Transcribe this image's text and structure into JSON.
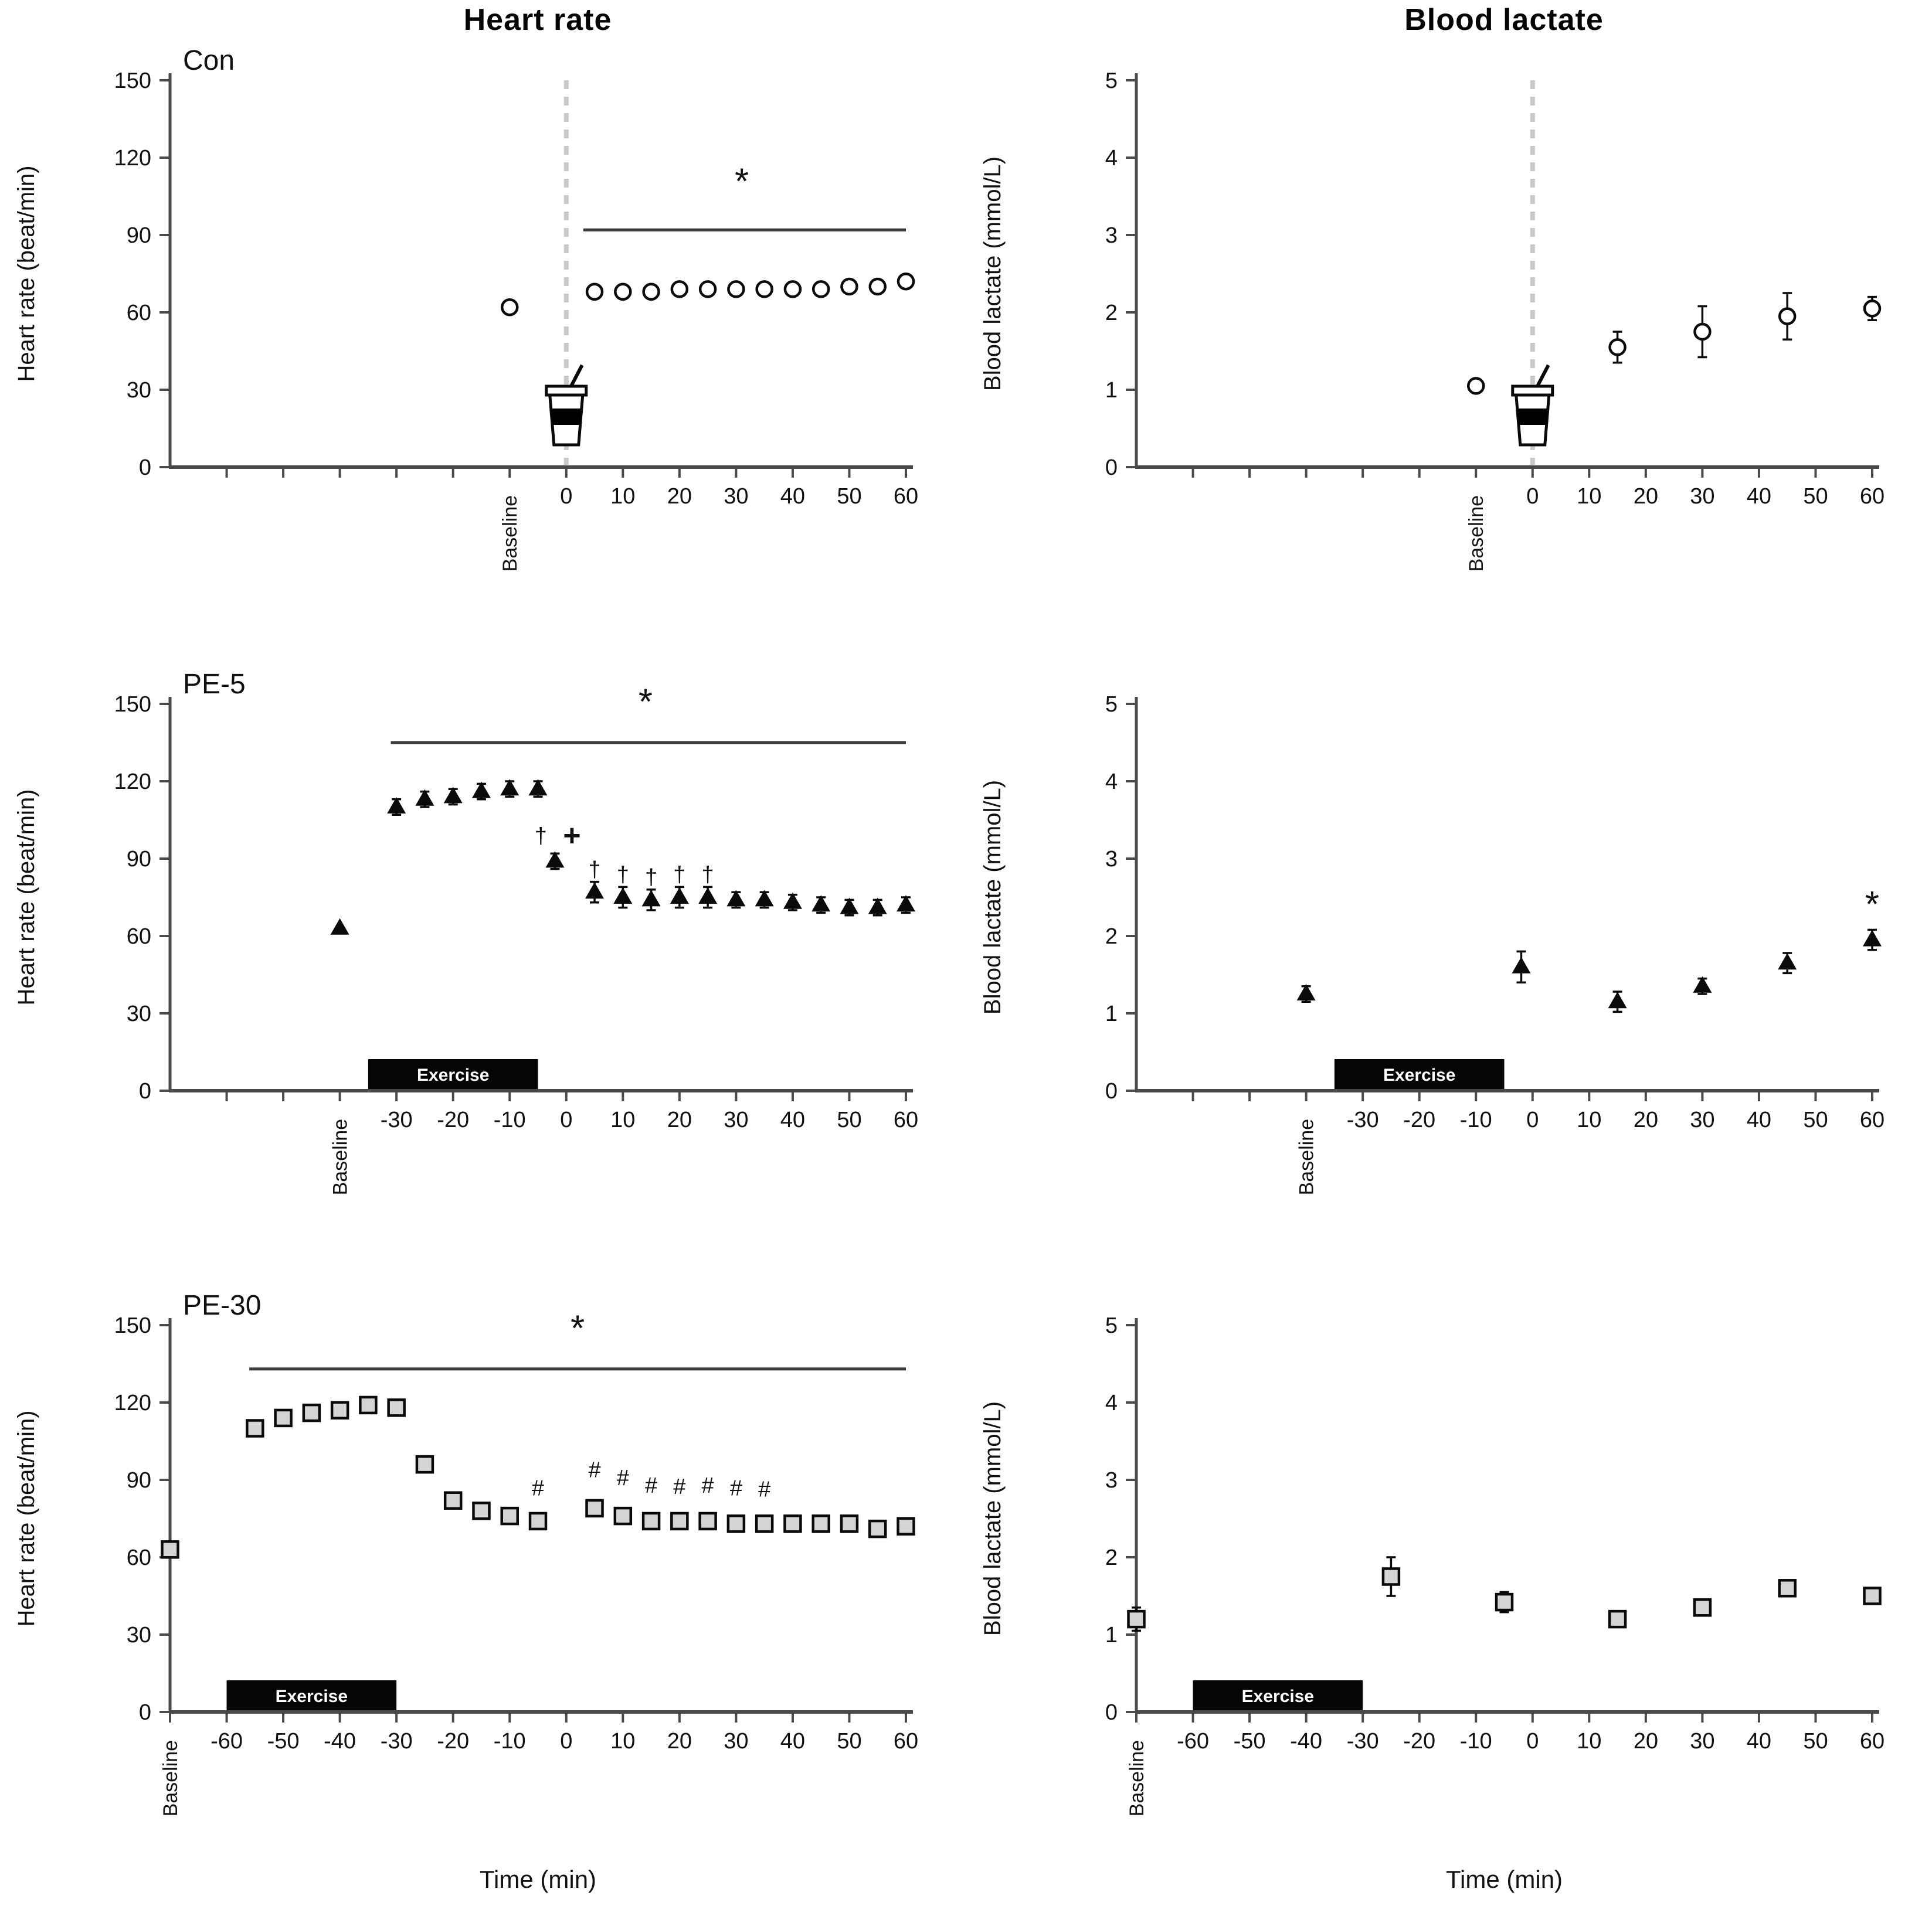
{
  "figure": {
    "column_titles": {
      "left": "Heart rate",
      "right": "Blood lactate"
    },
    "x_axis_label": "Time (min)",
    "exercise_label": "Exercise",
    "symbols": {
      "star": "*",
      "dagger": "†",
      "plus": "+",
      "hash": "#"
    },
    "colors": {
      "axis": "#4a4a4a",
      "black": "#0a0a0a",
      "gray_marker_fill": "#d4d4d4",
      "dashed_line": "#c9c9c9",
      "sig_line": "#3b3b3b",
      "exercise_bar": "#050505",
      "exercise_text": "#ffffff"
    }
  },
  "chart_data": [
    {
      "id": "con-hr",
      "type": "scatter",
      "row": "Con",
      "col": "left",
      "panel_label": "Con",
      "marker": "circle-open",
      "ylabel": "Heart rate (beat/min)",
      "ylim": [
        0,
        150
      ],
      "yticks": [
        0,
        30,
        60,
        90,
        120,
        150
      ],
      "x_ticks_labeled": [
        {
          "t": -10,
          "label": "Baseline",
          "rotated": true
        },
        {
          "t": 0,
          "label": "0"
        },
        {
          "t": 10,
          "label": "10"
        },
        {
          "t": 20,
          "label": "20"
        },
        {
          "t": 30,
          "label": "30"
        },
        {
          "t": 40,
          "label": "40"
        },
        {
          "t": 50,
          "label": "50"
        },
        {
          "t": 60,
          "label": "60"
        }
      ],
      "x_ticks_unlabeled": [
        -60,
        -50,
        -40,
        -30,
        -20
      ],
      "dashed_line_t": 0,
      "cup_icon_t": 0,
      "exercise_bar": null,
      "x_axis_label": false,
      "sig_line": {
        "v": 92,
        "t1": 3,
        "t2": 60,
        "star_t": 31,
        "star_v": 106
      },
      "points": [
        {
          "t": -10,
          "v": 62,
          "label": "baseline"
        },
        {
          "t": 5,
          "v": 68
        },
        {
          "t": 10,
          "v": 68
        },
        {
          "t": 15,
          "v": 68
        },
        {
          "t": 20,
          "v": 69
        },
        {
          "t": 25,
          "v": 69
        },
        {
          "t": 30,
          "v": 69
        },
        {
          "t": 35,
          "v": 69
        },
        {
          "t": 40,
          "v": 69
        },
        {
          "t": 45,
          "v": 69
        },
        {
          "t": 50,
          "v": 70
        },
        {
          "t": 55,
          "v": 70
        },
        {
          "t": 60,
          "v": 72
        }
      ],
      "annotations": []
    },
    {
      "id": "con-lactate",
      "type": "scatter",
      "row": "Con",
      "col": "right",
      "panel_label": null,
      "marker": "circle-open",
      "ylabel": "Blood lactate (mmol/L)",
      "ylim": [
        0,
        5
      ],
      "yticks": [
        0,
        1,
        2,
        3,
        4,
        5
      ],
      "x_ticks_labeled": [
        {
          "t": -10,
          "label": "Baseline",
          "rotated": true
        },
        {
          "t": 0,
          "label": "0"
        },
        {
          "t": 10,
          "label": "10"
        },
        {
          "t": 20,
          "label": "20"
        },
        {
          "t": 30,
          "label": "30"
        },
        {
          "t": 40,
          "label": "40"
        },
        {
          "t": 50,
          "label": "50"
        },
        {
          "t": 60,
          "label": "60"
        }
      ],
      "x_ticks_unlabeled": [
        -60,
        -50,
        -40,
        -30,
        -20
      ],
      "dashed_line_t": 0,
      "cup_icon_t": 0,
      "exercise_bar": null,
      "x_axis_label": false,
      "sig_line": null,
      "points": [
        {
          "t": -10,
          "v": 1.05,
          "label": "baseline"
        },
        {
          "t": 15,
          "v": 1.55,
          "err": 0.2
        },
        {
          "t": 30,
          "v": 1.75,
          "err": 0.33
        },
        {
          "t": 45,
          "v": 1.95,
          "err": 0.3
        },
        {
          "t": 60,
          "v": 2.05,
          "err": 0.15
        }
      ],
      "annotations": []
    },
    {
      "id": "pe5-hr",
      "type": "scatter",
      "row": "PE-5",
      "col": "left",
      "panel_label": "PE-5",
      "marker": "triangle-filled",
      "ylabel": "Heart rate (beat/min)",
      "ylim": [
        0,
        150
      ],
      "yticks": [
        0,
        30,
        60,
        90,
        120,
        150
      ],
      "x_ticks_labeled": [
        {
          "t": -40,
          "label": "Baseline",
          "rotated": true
        },
        {
          "t": -30,
          "label": "-30"
        },
        {
          "t": -20,
          "label": "-20"
        },
        {
          "t": -10,
          "label": "-10"
        },
        {
          "t": 0,
          "label": "0"
        },
        {
          "t": 10,
          "label": "10"
        },
        {
          "t": 20,
          "label": "20"
        },
        {
          "t": 30,
          "label": "30"
        },
        {
          "t": 40,
          "label": "40"
        },
        {
          "t": 50,
          "label": "50"
        },
        {
          "t": 60,
          "label": "60"
        }
      ],
      "x_ticks_unlabeled": [
        -60,
        -50
      ],
      "dashed_line_t": null,
      "cup_icon_t": null,
      "exercise_bar": {
        "t1": -35,
        "t2": -5
      },
      "x_axis_label": false,
      "sig_line": {
        "v": 135,
        "t1": -31,
        "t2": 60,
        "star_t": 14,
        "star_v": 146
      },
      "points": [
        {
          "t": -40,
          "v": 63,
          "label": "baseline"
        },
        {
          "t": -30,
          "v": 110,
          "err": 3
        },
        {
          "t": -25,
          "v": 113,
          "err": 3
        },
        {
          "t": -20,
          "v": 114,
          "err": 3
        },
        {
          "t": -15,
          "v": 116,
          "err": 3
        },
        {
          "t": -10,
          "v": 117,
          "err": 3
        },
        {
          "t": -5,
          "v": 117,
          "err": 3
        },
        {
          "t": -2,
          "v": 89,
          "err": 3
        },
        {
          "t": 5,
          "v": 77,
          "err": 4
        },
        {
          "t": 10,
          "v": 75,
          "err": 4
        },
        {
          "t": 15,
          "v": 74,
          "err": 4
        },
        {
          "t": 20,
          "v": 75,
          "err": 4
        },
        {
          "t": 25,
          "v": 75,
          "err": 4
        },
        {
          "t": 30,
          "v": 74,
          "err": 3
        },
        {
          "t": 35,
          "v": 74,
          "err": 3
        },
        {
          "t": 40,
          "v": 73,
          "err": 3
        },
        {
          "t": 45,
          "v": 72,
          "err": 3
        },
        {
          "t": 50,
          "v": 71,
          "err": 3
        },
        {
          "t": 55,
          "v": 71,
          "err": 3
        },
        {
          "t": 60,
          "v": 72,
          "err": 3
        }
      ],
      "annotations": [
        {
          "t": -4.5,
          "v": 96,
          "symbol": "dagger"
        },
        {
          "t": 1,
          "v": 95,
          "symbol": "plus"
        },
        {
          "t": 5,
          "v": 83,
          "symbol": "dagger"
        },
        {
          "t": 10,
          "v": 81,
          "symbol": "dagger"
        },
        {
          "t": 15,
          "v": 80,
          "symbol": "dagger"
        },
        {
          "t": 20,
          "v": 81,
          "symbol": "dagger"
        },
        {
          "t": 25,
          "v": 81,
          "symbol": "dagger"
        }
      ]
    },
    {
      "id": "pe5-lactate",
      "type": "scatter",
      "row": "PE-5",
      "col": "right",
      "panel_label": null,
      "marker": "triangle-filled",
      "ylabel": "Blood lactate (mmol/L)",
      "ylim": [
        0,
        5
      ],
      "yticks": [
        0,
        1,
        2,
        3,
        4,
        5
      ],
      "x_ticks_labeled": [
        {
          "t": -40,
          "label": "Baseline",
          "rotated": true
        },
        {
          "t": -30,
          "label": "-30"
        },
        {
          "t": -20,
          "label": "-20"
        },
        {
          "t": -10,
          "label": "-10"
        },
        {
          "t": 0,
          "label": "0"
        },
        {
          "t": 10,
          "label": "10"
        },
        {
          "t": 20,
          "label": "20"
        },
        {
          "t": 30,
          "label": "30"
        },
        {
          "t": 40,
          "label": "40"
        },
        {
          "t": 50,
          "label": "50"
        },
        {
          "t": 60,
          "label": "60"
        }
      ],
      "x_ticks_unlabeled": [
        -60,
        -50
      ],
      "dashed_line_t": null,
      "cup_icon_t": null,
      "exercise_bar": {
        "t1": -35,
        "t2": -5
      },
      "x_axis_label": false,
      "sig_line": null,
      "points": [
        {
          "t": -40,
          "v": 1.25,
          "err": 0.1,
          "label": "baseline"
        },
        {
          "t": -2,
          "v": 1.6,
          "err": 0.2
        },
        {
          "t": 15,
          "v": 1.15,
          "err": 0.13
        },
        {
          "t": 30,
          "v": 1.35,
          "err": 0.1
        },
        {
          "t": 45,
          "v": 1.65,
          "err": 0.13
        },
        {
          "t": 60,
          "v": 1.95,
          "err": 0.13
        }
      ],
      "annotations": [
        {
          "t": 60,
          "v": 2.25,
          "symbol": "star"
        }
      ]
    },
    {
      "id": "pe30-hr",
      "type": "scatter",
      "row": "PE-30",
      "col": "left",
      "panel_label": "PE-30",
      "marker": "square-gray",
      "ylabel": "Heart rate (beat/min)",
      "ylim": [
        0,
        150
      ],
      "yticks": [
        0,
        30,
        60,
        90,
        120,
        150
      ],
      "x_ticks_labeled": [
        {
          "t": -70,
          "label": "Baseline",
          "rotated": true
        },
        {
          "t": -60,
          "label": "-60"
        },
        {
          "t": -50,
          "label": "-50"
        },
        {
          "t": -40,
          "label": "-40"
        },
        {
          "t": -30,
          "label": "-30"
        },
        {
          "t": -20,
          "label": "-20"
        },
        {
          "t": -10,
          "label": "-10"
        },
        {
          "t": 0,
          "label": "0"
        },
        {
          "t": 10,
          "label": "10"
        },
        {
          "t": 20,
          "label": "20"
        },
        {
          "t": 30,
          "label": "30"
        },
        {
          "t": 40,
          "label": "40"
        },
        {
          "t": 50,
          "label": "50"
        },
        {
          "t": 60,
          "label": "60"
        }
      ],
      "x_ticks_unlabeled": [],
      "dashed_line_t": null,
      "cup_icon_t": null,
      "exercise_bar": {
        "t1": -60,
        "t2": -30
      },
      "x_axis_label": true,
      "sig_line": {
        "v": 133,
        "t1": -56,
        "t2": 60,
        "star_t": 2,
        "star_v": 144
      },
      "points": [
        {
          "t": -70,
          "v": 63,
          "label": "baseline"
        },
        {
          "t": -55,
          "v": 110,
          "err": 3
        },
        {
          "t": -50,
          "v": 114,
          "err": 3
        },
        {
          "t": -45,
          "v": 116,
          "err": 3
        },
        {
          "t": -40,
          "v": 117,
          "err": 3
        },
        {
          "t": -35,
          "v": 119,
          "err": 3
        },
        {
          "t": -30,
          "v": 118,
          "err": 3
        },
        {
          "t": -25,
          "v": 96,
          "err": 3
        },
        {
          "t": -20,
          "v": 82,
          "err": 3
        },
        {
          "t": -15,
          "v": 78,
          "err": 3
        },
        {
          "t": -10,
          "v": 76,
          "err": 3
        },
        {
          "t": -5,
          "v": 74,
          "err": 3
        },
        {
          "t": 5,
          "v": 79,
          "err": 3
        },
        {
          "t": 10,
          "v": 76,
          "err": 3
        },
        {
          "t": 15,
          "v": 74,
          "err": 3
        },
        {
          "t": 20,
          "v": 74,
          "err": 3
        },
        {
          "t": 25,
          "v": 74,
          "err": 3
        },
        {
          "t": 30,
          "v": 73,
          "err": 3
        },
        {
          "t": 35,
          "v": 73,
          "err": 3
        },
        {
          "t": 40,
          "v": 73,
          "err": 3
        },
        {
          "t": 45,
          "v": 73,
          "err": 3
        },
        {
          "t": 50,
          "v": 73,
          "err": 3
        },
        {
          "t": 55,
          "v": 71,
          "err": 3
        },
        {
          "t": 60,
          "v": 72,
          "err": 3
        }
      ],
      "annotations": [
        {
          "t": -5,
          "v": 84,
          "symbol": "hash"
        },
        {
          "t": 5,
          "v": 91,
          "symbol": "hash"
        },
        {
          "t": 10,
          "v": 88,
          "symbol": "hash"
        },
        {
          "t": 15,
          "v": 85,
          "symbol": "hash"
        },
        {
          "t": 20,
          "v": 84.5,
          "symbol": "hash"
        },
        {
          "t": 25,
          "v": 85,
          "symbol": "hash"
        },
        {
          "t": 30,
          "v": 84,
          "symbol": "hash"
        },
        {
          "t": 35,
          "v": 83.5,
          "symbol": "hash"
        }
      ]
    },
    {
      "id": "pe30-lactate",
      "type": "scatter",
      "row": "PE-30",
      "col": "right",
      "panel_label": null,
      "marker": "square-gray",
      "ylabel": "Blood lactate (mmol/L)",
      "ylim": [
        0,
        5
      ],
      "yticks": [
        0,
        1,
        2,
        3,
        4,
        5
      ],
      "x_ticks_labeled": [
        {
          "t": -70,
          "label": "Baseline",
          "rotated": true
        },
        {
          "t": -60,
          "label": "-60"
        },
        {
          "t": -50,
          "label": "-50"
        },
        {
          "t": -40,
          "label": "-40"
        },
        {
          "t": -30,
          "label": "-30"
        },
        {
          "t": -20,
          "label": "-20"
        },
        {
          "t": -10,
          "label": "-10"
        },
        {
          "t": 0,
          "label": "0"
        },
        {
          "t": 10,
          "label": "10"
        },
        {
          "t": 20,
          "label": "20"
        },
        {
          "t": 30,
          "label": "30"
        },
        {
          "t": 40,
          "label": "40"
        },
        {
          "t": 50,
          "label": "50"
        },
        {
          "t": 60,
          "label": "60"
        }
      ],
      "x_ticks_unlabeled": [],
      "dashed_line_t": null,
      "cup_icon_t": null,
      "exercise_bar": {
        "t1": -60,
        "t2": -30
      },
      "x_axis_label": true,
      "sig_line": null,
      "points": [
        {
          "t": -70,
          "v": 1.2,
          "err": 0.15,
          "label": "baseline"
        },
        {
          "t": -25,
          "v": 1.75,
          "err": 0.25
        },
        {
          "t": -5,
          "v": 1.42,
          "err": 0.13
        },
        {
          "t": 15,
          "v": 1.2,
          "err": 0.1
        },
        {
          "t": 30,
          "v": 1.35,
          "err": 0.08
        },
        {
          "t": 45,
          "v": 1.6,
          "err": 0.1
        },
        {
          "t": 60,
          "v": 1.5,
          "err": 0.1
        }
      ],
      "annotations": []
    }
  ]
}
